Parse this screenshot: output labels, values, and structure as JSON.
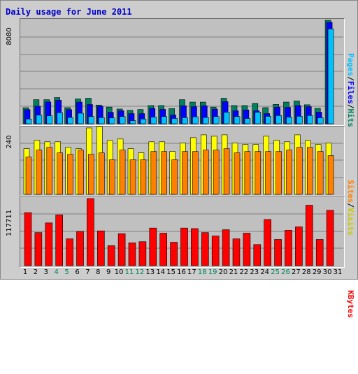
{
  "title": "Daily usage for June 2011",
  "colors": {
    "hits": "#00805c",
    "files": "#0000ff",
    "pages": "#00c0ff",
    "visits": "#ffff00",
    "sites": "#ff8000",
    "kbytes": "#ff0000",
    "weekday_label": "#000000",
    "weekend_label": "#00805c"
  },
  "chart_data": [
    {
      "type": "bar",
      "panel": "hits-files-pages",
      "y_max_label": "8080",
      "ylim": [
        0,
        8080
      ],
      "legend": [
        "Pages",
        "Files",
        "Hits"
      ],
      "x": [
        "1",
        "2",
        "3",
        "4",
        "5",
        "6",
        "7",
        "8",
        "9",
        "10",
        "11",
        "12",
        "13",
        "14",
        "15",
        "16",
        "17",
        "18",
        "19",
        "20",
        "21",
        "22",
        "23",
        "24",
        "25",
        "26",
        "27",
        "28",
        "29",
        "30",
        "31"
      ],
      "series": [
        {
          "name": "Hits",
          "values": [
            1250,
            1880,
            1880,
            2040,
            1260,
            1940,
            1990,
            1460,
            1300,
            1150,
            1050,
            1110,
            1420,
            1420,
            1180,
            1880,
            1690,
            1690,
            1300,
            1990,
            1420,
            1420,
            1590,
            1260,
            1510,
            1690,
            1780,
            1480,
            1200,
            8080,
            0
          ]
        },
        {
          "name": "Files",
          "values": [
            1100,
            1370,
            1700,
            1830,
            1100,
            1690,
            1500,
            1370,
            890,
            1010,
            790,
            790,
            1200,
            1120,
            680,
            1400,
            1330,
            1400,
            1140,
            1730,
            1010,
            1080,
            1010,
            790,
            1300,
            1280,
            1420,
            1330,
            900,
            7920,
            0
          ]
        },
        {
          "name": "Pages",
          "values": [
            370,
            670,
            620,
            860,
            490,
            820,
            560,
            480,
            450,
            560,
            240,
            370,
            520,
            560,
            410,
            480,
            540,
            490,
            560,
            900,
            560,
            410,
            900,
            580,
            640,
            520,
            580,
            640,
            460,
            7400,
            0
          ]
        }
      ]
    },
    {
      "type": "bar",
      "panel": "visits-sites",
      "y_max_label": "240",
      "ylim": [
        0,
        240
      ],
      "legend": [
        "Sites",
        "Visits"
      ],
      "x": [
        "1",
        "2",
        "3",
        "4",
        "5",
        "6",
        "7",
        "8",
        "9",
        "10",
        "11",
        "12",
        "13",
        "14",
        "15",
        "16",
        "17",
        "18",
        "19",
        "20",
        "21",
        "22",
        "23",
        "24",
        "25",
        "26",
        "27",
        "28",
        "29",
        "30",
        "31"
      ],
      "series": [
        {
          "name": "Visits",
          "values": [
            165,
            195,
            190,
            190,
            170,
            165,
            240,
            245,
            195,
            200,
            165,
            150,
            190,
            190,
            155,
            185,
            205,
            215,
            210,
            215,
            185,
            180,
            180,
            210,
            195,
            190,
            215,
            195,
            180,
            185,
            0
          ]
        },
        {
          "name": "Sites",
          "values": [
            135,
            160,
            170,
            150,
            145,
            160,
            145,
            150,
            125,
            160,
            125,
            125,
            155,
            155,
            125,
            155,
            155,
            160,
            160,
            165,
            150,
            155,
            155,
            155,
            155,
            160,
            170,
            170,
            155,
            140,
            0
          ]
        }
      ]
    },
    {
      "type": "bar",
      "panel": "kbytes",
      "y_max_label": "117711",
      "ylim": [
        0,
        117711
      ],
      "legend": [
        "KBytes"
      ],
      "x": [
        "1",
        "2",
        "3",
        "4",
        "5",
        "6",
        "7",
        "8",
        "9",
        "10",
        "11",
        "12",
        "13",
        "14",
        "15",
        "16",
        "17",
        "18",
        "19",
        "20",
        "21",
        "22",
        "23",
        "24",
        "25",
        "26",
        "27",
        "28",
        "29",
        "30",
        "31"
      ],
      "series": [
        {
          "name": "KBytes",
          "values": [
            93000,
            58000,
            75000,
            89000,
            47000,
            60000,
            117711,
            61000,
            35000,
            56000,
            40000,
            42000,
            66000,
            57000,
            41000,
            66000,
            65000,
            58000,
            52000,
            63000,
            47000,
            57000,
            37000,
            81000,
            46000,
            62000,
            68000,
            106000,
            46000,
            97000,
            0
          ]
        }
      ]
    }
  ],
  "day_labels": [
    "1",
    "2",
    "3",
    "4",
    "5",
    "6",
    "7",
    "8",
    "9",
    "10",
    "11",
    "12",
    "13",
    "14",
    "15",
    "16",
    "17",
    "18",
    "19",
    "20",
    "21",
    "22",
    "23",
    "24",
    "25",
    "26",
    "27",
    "28",
    "29",
    "30",
    "31"
  ],
  "weekend_days": [
    "4",
    "5",
    "11",
    "12",
    "18",
    "19",
    "25",
    "26"
  ]
}
